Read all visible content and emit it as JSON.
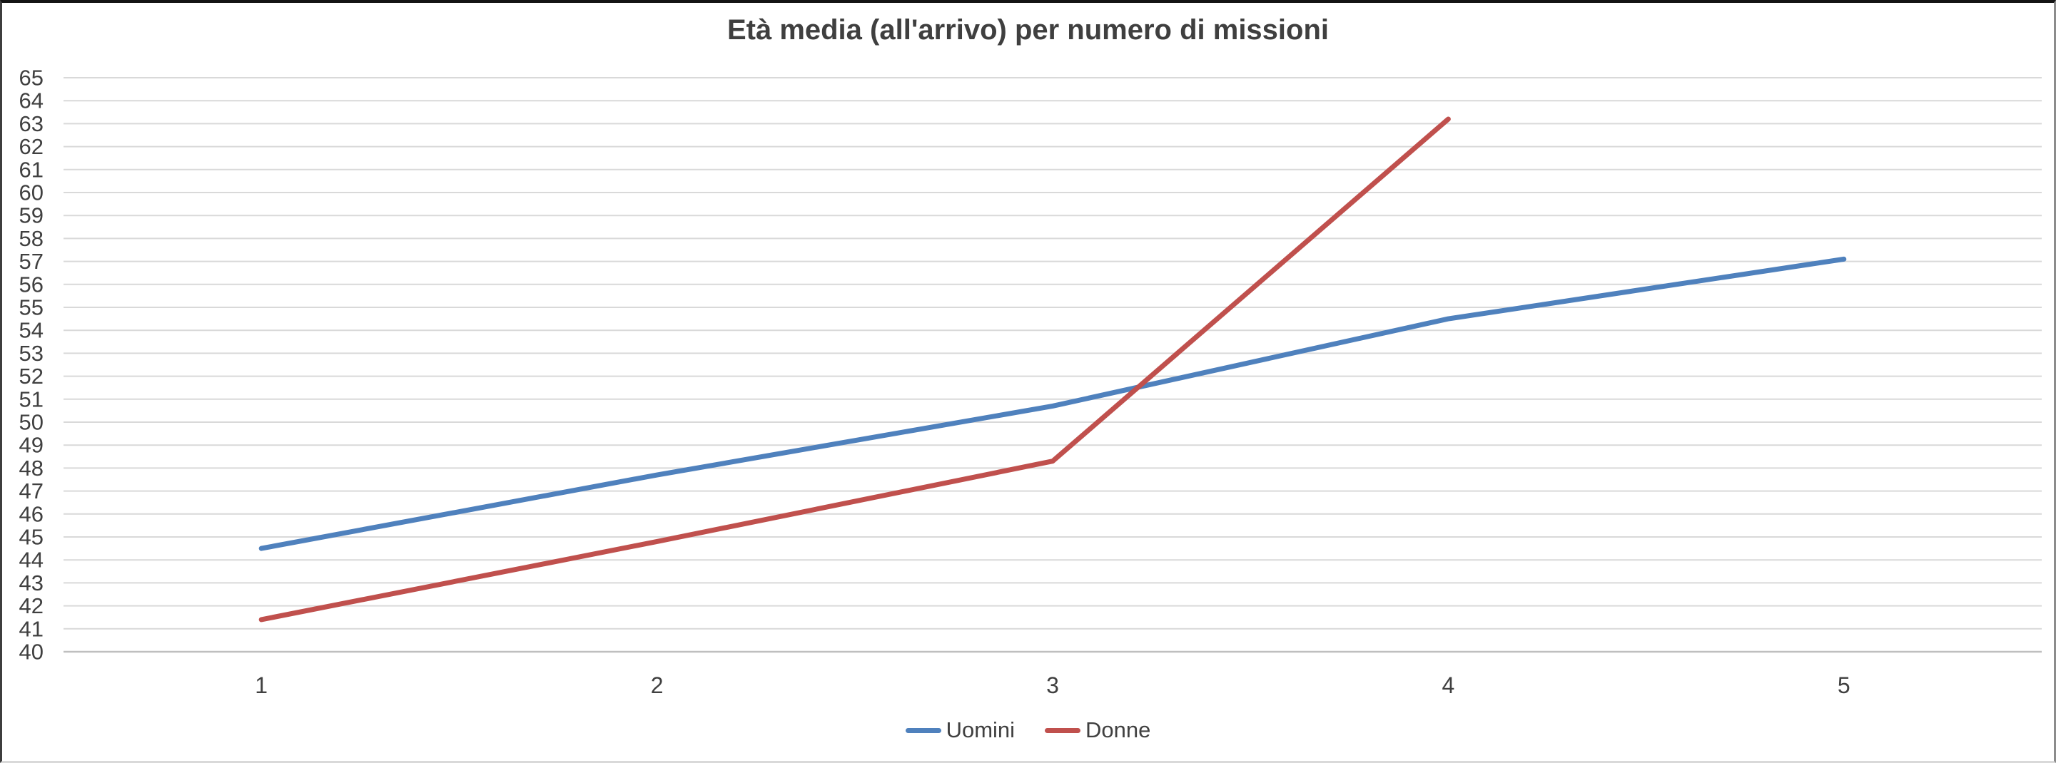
{
  "chart_data": {
    "type": "line",
    "title": "Età media (all'arrivo) per numero di missioni",
    "categories": [
      "1",
      "2",
      "3",
      "4",
      "5"
    ],
    "series": [
      {
        "name": "Uomini",
        "color": "#4F81BD",
        "values": [
          44.5,
          47.7,
          50.7,
          54.5,
          57.1
        ]
      },
      {
        "name": "Donne",
        "color": "#C0504D",
        "values": [
          41.4,
          44.8,
          48.3,
          63.2
        ]
      }
    ],
    "xlabel": "",
    "ylabel": "",
    "ylim": [
      40,
      65
    ],
    "ytick_step": 1,
    "grid": true,
    "gridline_color": "#D9D9D9",
    "axis_line_color": "#BFBFBF",
    "axis_text_color": "#404040",
    "title_color": "#3F3F3F",
    "legend_position": "bottom",
    "background": "#FFFFFF"
  }
}
